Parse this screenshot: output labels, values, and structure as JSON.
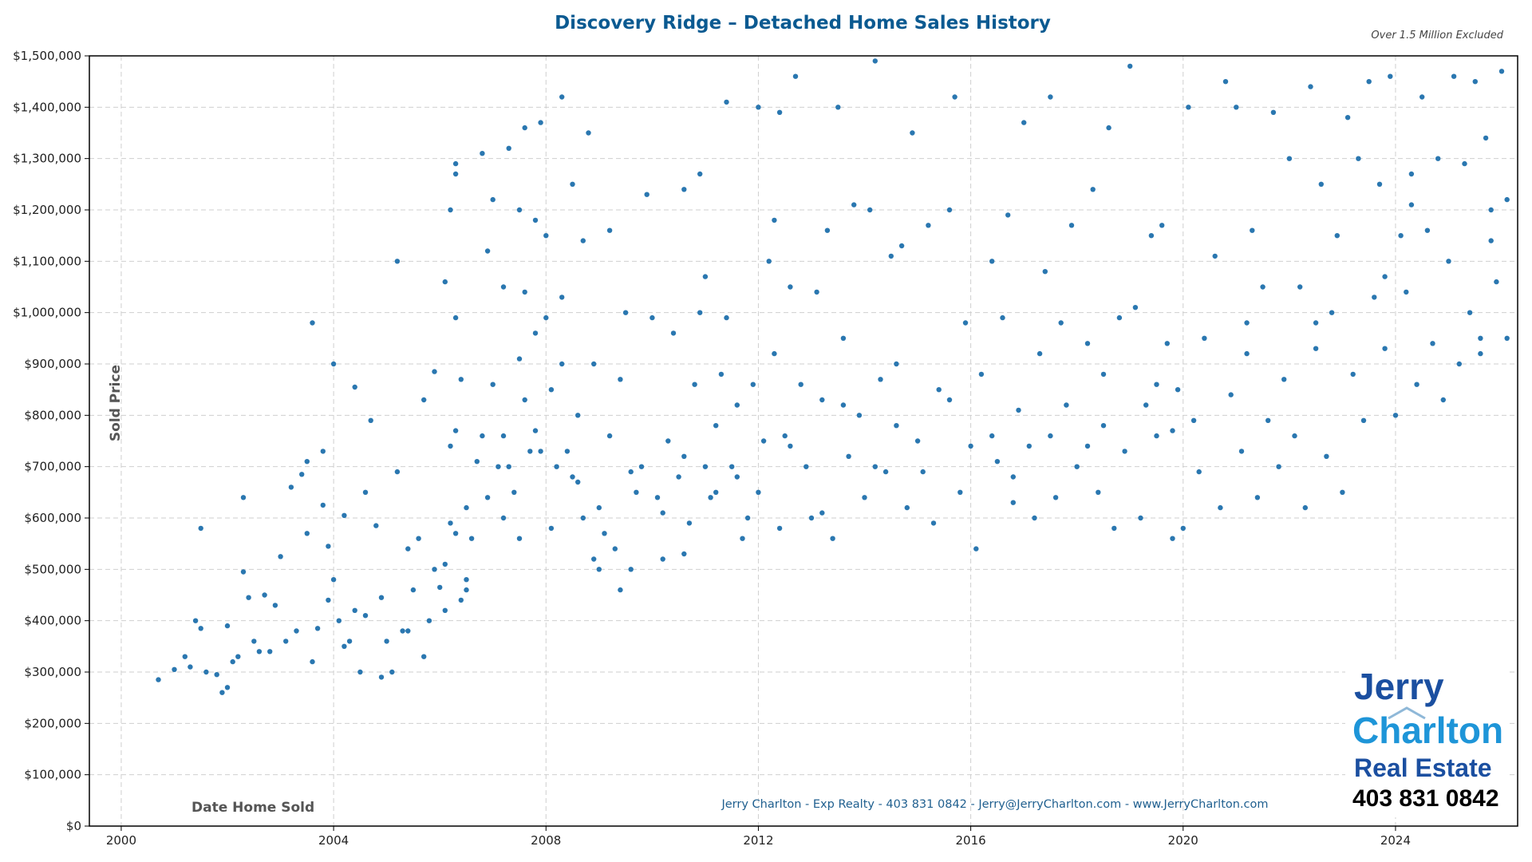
{
  "chart_data": {
    "type": "scatter",
    "title": "Discovery Ridge – Detached Home Sales History",
    "subtitle": "Over 1.5 Million Excluded",
    "xlabel": "Date Home Sold",
    "ylabel": "Sold Price",
    "xlim": [
      1999.4,
      2026.3
    ],
    "ylim": [
      0,
      1500000
    ],
    "x_ticks": [
      2000,
      2004,
      2008,
      2012,
      2016,
      2020,
      2024
    ],
    "x_tick_labels": [
      "2000",
      "2004",
      "2008",
      "2012",
      "2016",
      "2020",
      "2024"
    ],
    "y_ticks": [
      0,
      100000,
      200000,
      300000,
      400000,
      500000,
      600000,
      700000,
      800000,
      900000,
      1000000,
      1100000,
      1200000,
      1300000,
      1400000,
      1500000
    ],
    "y_tick_labels": [
      "$0",
      "$100,000",
      "$200,000",
      "$300,000",
      "$400,000",
      "$500,000",
      "$600,000",
      "$700,000",
      "$800,000",
      "$900,000",
      "$1,000,000",
      "$1,100,000",
      "$1,200,000",
      "$1,300,000",
      "$1,400,000",
      "$1,500,000"
    ],
    "grid": true,
    "point_color": "#2a77b0",
    "points": [
      [
        2000.7,
        285000
      ],
      [
        2001.0,
        305000
      ],
      [
        2001.2,
        330000
      ],
      [
        2001.3,
        310000
      ],
      [
        2001.4,
        400000
      ],
      [
        2001.5,
        385000
      ],
      [
        2001.5,
        580000
      ],
      [
        2001.6,
        300000
      ],
      [
        2001.8,
        295000
      ],
      [
        2001.9,
        260000
      ],
      [
        2002.0,
        270000
      ],
      [
        2002.0,
        390000
      ],
      [
        2002.1,
        320000
      ],
      [
        2002.2,
        330000
      ],
      [
        2002.3,
        495000
      ],
      [
        2002.3,
        640000
      ],
      [
        2002.4,
        445000
      ],
      [
        2002.5,
        360000
      ],
      [
        2002.6,
        340000
      ],
      [
        2002.7,
        450000
      ],
      [
        2002.8,
        340000
      ],
      [
        2002.9,
        430000
      ],
      [
        2003.0,
        525000
      ],
      [
        2003.1,
        360000
      ],
      [
        2003.2,
        660000
      ],
      [
        2003.3,
        380000
      ],
      [
        2003.4,
        685000
      ],
      [
        2003.5,
        570000
      ],
      [
        2003.6,
        320000
      ],
      [
        2003.7,
        385000
      ],
      [
        2003.8,
        625000
      ],
      [
        2003.9,
        440000
      ],
      [
        2003.9,
        545000
      ],
      [
        2003.6,
        980000
      ],
      [
        2003.5,
        710000
      ],
      [
        2004.1,
        400000
      ],
      [
        2004.2,
        605000
      ],
      [
        2004.2,
        350000
      ],
      [
        2004.4,
        420000
      ],
      [
        2004.5,
        300000
      ],
      [
        2003.8,
        730000
      ],
      [
        2004.0,
        480000
      ],
      [
        2004.3,
        360000
      ],
      [
        2004.6,
        410000
      ],
      [
        2004.0,
        900000
      ],
      [
        2004.8,
        585000
      ],
      [
        2004.9,
        445000
      ],
      [
        2005.0,
        360000
      ],
      [
        2005.1,
        300000
      ],
      [
        2004.4,
        855000
      ],
      [
        2004.6,
        650000
      ],
      [
        2004.7,
        790000
      ],
      [
        2005.3,
        380000
      ],
      [
        2005.4,
        540000
      ],
      [
        2005.5,
        460000
      ],
      [
        2005.2,
        690000
      ],
      [
        2004.9,
        290000
      ],
      [
        2005.7,
        830000
      ],
      [
        2005.6,
        560000
      ],
      [
        2005.8,
        400000
      ],
      [
        2005.9,
        500000
      ],
      [
        2005.7,
        330000
      ],
      [
        2006.0,
        465000
      ],
      [
        2005.2,
        1100000
      ],
      [
        2006.1,
        420000
      ],
      [
        2006.2,
        740000
      ],
      [
        2005.4,
        380000
      ],
      [
        2005.9,
        885000
      ],
      [
        2006.3,
        570000
      ],
      [
        2006.1,
        510000
      ],
      [
        2006.4,
        440000
      ],
      [
        2006.3,
        770000
      ],
      [
        2006.5,
        620000
      ],
      [
        2006.2,
        590000
      ],
      [
        2006.4,
        870000
      ],
      [
        2006.7,
        710000
      ],
      [
        2006.5,
        480000
      ],
      [
        2006.1,
        1060000
      ],
      [
        2006.8,
        760000
      ],
      [
        2006.3,
        1270000
      ],
      [
        2006.6,
        560000
      ],
      [
        2006.2,
        1200000
      ],
      [
        2006.9,
        640000
      ],
      [
        2006.3,
        1290000
      ],
      [
        2006.3,
        990000
      ],
      [
        2006.5,
        460000
      ],
      [
        2007.1,
        700000
      ],
      [
        2007.0,
        860000
      ],
      [
        2007.2,
        600000
      ],
      [
        2006.8,
        1310000
      ],
      [
        2007.2,
        760000
      ],
      [
        2007.4,
        650000
      ],
      [
        2006.9,
        1120000
      ],
      [
        2007.5,
        910000
      ],
      [
        2007.3,
        700000
      ],
      [
        2007.2,
        1050000
      ],
      [
        2007.5,
        560000
      ],
      [
        2007.0,
        1220000
      ],
      [
        2007.6,
        830000
      ],
      [
        2007.7,
        730000
      ],
      [
        2007.8,
        770000
      ],
      [
        2007.3,
        1320000
      ],
      [
        2007.8,
        960000
      ],
      [
        2007.5,
        1200000
      ],
      [
        2007.6,
        1040000
      ],
      [
        2007.9,
        730000
      ],
      [
        2007.6,
        1360000
      ],
      [
        2008.0,
        990000
      ],
      [
        2007.9,
        1370000
      ],
      [
        2008.1,
        850000
      ],
      [
        2007.8,
        1180000
      ],
      [
        2008.2,
        700000
      ],
      [
        2008.3,
        900000
      ],
      [
        2008.1,
        580000
      ],
      [
        2008.0,
        1150000
      ],
      [
        2008.4,
        730000
      ],
      [
        2008.3,
        1030000
      ],
      [
        2008.3,
        1420000
      ],
      [
        2008.5,
        680000
      ],
      [
        2008.5,
        1250000
      ],
      [
        2008.6,
        800000
      ],
      [
        2008.7,
        1140000
      ],
      [
        2008.7,
        600000
      ],
      [
        2008.8,
        1350000
      ],
      [
        2008.9,
        900000
      ],
      [
        2009.0,
        620000
      ],
      [
        2009.1,
        570000
      ],
      [
        2009.2,
        760000
      ],
      [
        2009.3,
        540000
      ],
      [
        2009.4,
        870000
      ],
      [
        2009.5,
        1000000
      ],
      [
        2009.4,
        460000
      ],
      [
        2009.6,
        500000
      ],
      [
        2009.2,
        1160000
      ],
      [
        2009.8,
        700000
      ],
      [
        2009.7,
        650000
      ],
      [
        2010.0,
        990000
      ],
      [
        2009.9,
        1230000
      ],
      [
        2010.1,
        640000
      ],
      [
        2010.2,
        520000
      ],
      [
        2010.3,
        750000
      ],
      [
        2010.4,
        960000
      ],
      [
        2010.5,
        680000
      ],
      [
        2010.6,
        1240000
      ],
      [
        2010.7,
        590000
      ],
      [
        2010.8,
        860000
      ],
      [
        2010.9,
        1000000
      ],
      [
        2011.0,
        700000
      ],
      [
        2010.6,
        530000
      ],
      [
        2010.9,
        1270000
      ],
      [
        2011.1,
        640000
      ],
      [
        2011.3,
        880000
      ],
      [
        2011.0,
        1070000
      ],
      [
        2011.5,
        700000
      ],
      [
        2011.4,
        990000
      ],
      [
        2011.2,
        780000
      ],
      [
        2011.6,
        680000
      ],
      [
        2011.8,
        600000
      ],
      [
        2011.4,
        1410000
      ],
      [
        2011.7,
        560000
      ],
      [
        2011.9,
        860000
      ],
      [
        2012.0,
        1400000
      ],
      [
        2012.1,
        750000
      ],
      [
        2012.2,
        1100000
      ],
      [
        2012.0,
        650000
      ],
      [
        2012.3,
        920000
      ],
      [
        2012.4,
        1390000
      ],
      [
        2012.4,
        580000
      ],
      [
        2012.3,
        1180000
      ],
      [
        2012.5,
        760000
      ],
      [
        2012.6,
        1050000
      ],
      [
        2012.7,
        1460000
      ],
      [
        2012.8,
        860000
      ],
      [
        2012.9,
        700000
      ],
      [
        2013.0,
        600000
      ],
      [
        2013.1,
        1040000
      ],
      [
        2013.2,
        830000
      ],
      [
        2013.3,
        1160000
      ],
      [
        2013.4,
        560000
      ],
      [
        2013.5,
        1400000
      ],
      [
        2013.6,
        950000
      ],
      [
        2013.7,
        720000
      ],
      [
        2013.8,
        1210000
      ],
      [
        2013.9,
        800000
      ],
      [
        2014.0,
        640000
      ],
      [
        2014.1,
        1200000
      ],
      [
        2014.2,
        1490000
      ],
      [
        2014.3,
        870000
      ],
      [
        2014.4,
        690000
      ],
      [
        2014.5,
        1110000
      ],
      [
        2014.6,
        780000
      ],
      [
        2014.7,
        1130000
      ],
      [
        2014.8,
        620000
      ],
      [
        2014.9,
        1350000
      ],
      [
        2015.0,
        750000
      ],
      [
        2015.1,
        690000
      ],
      [
        2015.2,
        1170000
      ],
      [
        2015.3,
        590000
      ],
      [
        2015.4,
        850000
      ],
      [
        2015.6,
        1200000
      ],
      [
        2015.7,
        1420000
      ],
      [
        2015.8,
        650000
      ],
      [
        2015.9,
        980000
      ],
      [
        2016.0,
        740000
      ],
      [
        2016.1,
        540000
      ],
      [
        2016.2,
        880000
      ],
      [
        2016.4,
        1100000
      ],
      [
        2016.5,
        710000
      ],
      [
        2016.6,
        990000
      ],
      [
        2016.7,
        1190000
      ],
      [
        2016.8,
        630000
      ],
      [
        2016.9,
        810000
      ],
      [
        2017.0,
        1370000
      ],
      [
        2017.1,
        740000
      ],
      [
        2017.2,
        600000
      ],
      [
        2017.3,
        920000
      ],
      [
        2017.4,
        1080000
      ],
      [
        2017.5,
        1420000
      ],
      [
        2017.6,
        640000
      ],
      [
        2017.7,
        980000
      ],
      [
        2017.8,
        820000
      ],
      [
        2017.9,
        1170000
      ],
      [
        2018.0,
        700000
      ],
      [
        2018.2,
        940000
      ],
      [
        2018.3,
        1240000
      ],
      [
        2018.4,
        650000
      ],
      [
        2018.5,
        780000
      ],
      [
        2018.6,
        1360000
      ],
      [
        2018.7,
        580000
      ],
      [
        2018.8,
        990000
      ],
      [
        2018.9,
        730000
      ],
      [
        2019.0,
        1480000
      ],
      [
        2019.1,
        1010000
      ],
      [
        2019.2,
        600000
      ],
      [
        2019.3,
        820000
      ],
      [
        2019.4,
        1150000
      ],
      [
        2019.5,
        760000
      ],
      [
        2019.6,
        1170000
      ],
      [
        2019.7,
        940000
      ],
      [
        2019.8,
        560000
      ],
      [
        2019.9,
        850000
      ],
      [
        2020.0,
        580000
      ],
      [
        2020.1,
        1400000
      ],
      [
        2020.2,
        790000
      ],
      [
        2020.3,
        690000
      ],
      [
        2020.4,
        950000
      ],
      [
        2020.6,
        1110000
      ],
      [
        2020.7,
        620000
      ],
      [
        2020.8,
        1450000
      ],
      [
        2020.9,
        840000
      ],
      [
        2021.0,
        1400000
      ],
      [
        2021.1,
        730000
      ],
      [
        2021.2,
        980000
      ],
      [
        2021.3,
        1160000
      ],
      [
        2021.4,
        640000
      ],
      [
        2021.5,
        1050000
      ],
      [
        2021.6,
        790000
      ],
      [
        2021.7,
        1390000
      ],
      [
        2021.8,
        700000
      ],
      [
        2021.9,
        870000
      ],
      [
        2022.0,
        1300000
      ],
      [
        2022.1,
        760000
      ],
      [
        2022.2,
        1050000
      ],
      [
        2022.3,
        620000
      ],
      [
        2022.4,
        1440000
      ],
      [
        2022.5,
        930000
      ],
      [
        2022.6,
        1250000
      ],
      [
        2022.7,
        720000
      ],
      [
        2022.8,
        1000000
      ],
      [
        2022.9,
        1150000
      ],
      [
        2023.0,
        650000
      ],
      [
        2023.1,
        1380000
      ],
      [
        2023.2,
        880000
      ],
      [
        2023.3,
        1300000
      ],
      [
        2023.4,
        790000
      ],
      [
        2023.5,
        1450000
      ],
      [
        2023.6,
        1030000
      ],
      [
        2023.7,
        1250000
      ],
      [
        2023.8,
        930000
      ],
      [
        2023.9,
        1460000
      ],
      [
        2024.0,
        800000
      ],
      [
        2024.1,
        1150000
      ],
      [
        2024.2,
        1040000
      ],
      [
        2024.3,
        1210000
      ],
      [
        2024.4,
        860000
      ],
      [
        2024.5,
        1420000
      ],
      [
        2024.6,
        1160000
      ],
      [
        2024.7,
        940000
      ],
      [
        2024.8,
        1300000
      ],
      [
        2024.9,
        830000
      ],
      [
        2025.0,
        1100000
      ],
      [
        2025.1,
        1460000
      ],
      [
        2025.2,
        900000
      ],
      [
        2025.3,
        1290000
      ],
      [
        2025.4,
        1000000
      ],
      [
        2025.5,
        1450000
      ],
      [
        2025.6,
        950000
      ],
      [
        2025.7,
        1340000
      ],
      [
        2025.8,
        1200000
      ],
      [
        2025.9,
        1060000
      ],
      [
        2026.0,
        1470000
      ],
      [
        2026.1,
        1220000
      ],
      [
        2026.1,
        950000
      ],
      [
        2025.8,
        1140000
      ],
      [
        2025.6,
        920000
      ],
      [
        2024.3,
        1270000
      ],
      [
        2023.8,
        1070000
      ],
      [
        2022.5,
        980000
      ],
      [
        2021.2,
        920000
      ],
      [
        2019.5,
        860000
      ],
      [
        2018.5,
        880000
      ],
      [
        2017.5,
        760000
      ],
      [
        2016.4,
        760000
      ],
      [
        2015.6,
        830000
      ],
      [
        2014.6,
        900000
      ],
      [
        2013.6,
        820000
      ],
      [
        2012.6,
        740000
      ],
      [
        2011.6,
        820000
      ],
      [
        2010.6,
        720000
      ],
      [
        2009.6,
        690000
      ],
      [
        2008.6,
        670000
      ],
      [
        2008.9,
        520000
      ],
      [
        2009.0,
        500000
      ],
      [
        2010.2,
        610000
      ],
      [
        2011.2,
        650000
      ],
      [
        2013.2,
        610000
      ],
      [
        2014.2,
        700000
      ],
      [
        2016.8,
        680000
      ],
      [
        2018.2,
        740000
      ],
      [
        2019.8,
        770000
      ]
    ]
  },
  "footer": {
    "contact": "Jerry Charlton - Exp Realty - 403 831 0842 - Jerry@JerryCharlton.com - www.JerryCharlton.com"
  },
  "logo": {
    "line1": "Jerry",
    "line2": "Charlton",
    "line3": "Real Estate",
    "phone": "403 831 0842"
  }
}
